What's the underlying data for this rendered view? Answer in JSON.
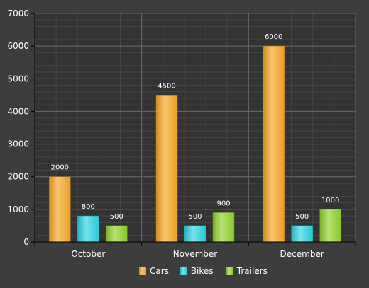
{
  "chart_data": {
    "type": "bar",
    "categories": [
      "October",
      "November",
      "December"
    ],
    "series": [
      {
        "name": "Cars",
        "values": [
          2000,
          4500,
          6000
        ],
        "color": "#f5a623"
      },
      {
        "name": "Bikes",
        "values": [
          800,
          500,
          500
        ],
        "color": "#2ad4e0"
      },
      {
        "name": "Trailers",
        "values": [
          500,
          900,
          1000
        ],
        "color": "#8fd12a"
      }
    ],
    "ylim": [
      0,
      7000
    ],
    "yticks": [
      0,
      1000,
      2000,
      3000,
      4000,
      5000,
      6000,
      7000
    ],
    "title": "",
    "xlabel": "",
    "ylabel": "",
    "grid": true,
    "legend_position": "bottom-center",
    "colors": {
      "background": "#3d3d3d",
      "plot_background": "#333333",
      "major_grid": "#6a6a6a",
      "minor_grid": "#444444",
      "axis": "#000000",
      "text": "#ffffff"
    }
  }
}
